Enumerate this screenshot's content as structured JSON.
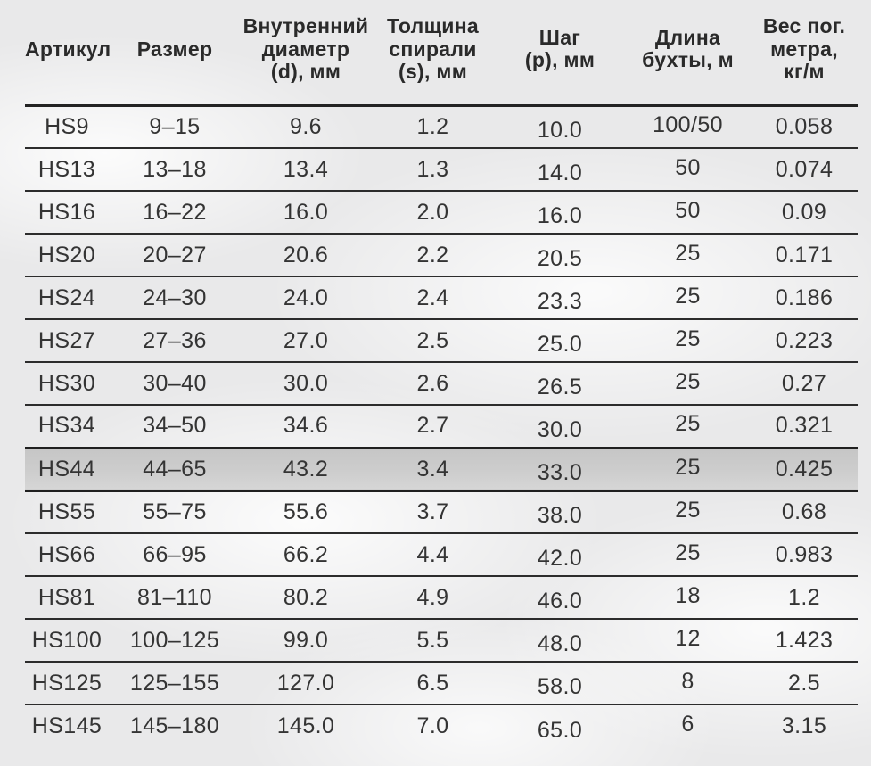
{
  "colors": {
    "page_background": "#e9e9ea",
    "text": "#343434",
    "rule_line": "#2c2c2c",
    "highlight_row_background": "#cbcbcb"
  },
  "table": {
    "columns": [
      {
        "id": "article",
        "label": "Артикул"
      },
      {
        "id": "size",
        "label": "Размер"
      },
      {
        "id": "inner_diameter",
        "label": "Внутренний\nдиаметр\n(d), мм"
      },
      {
        "id": "spiral_thickness",
        "label": "Толщина\nспирали\n(s), мм"
      },
      {
        "id": "step",
        "label": "Шаг\n(р), мм"
      },
      {
        "id": "coil_length",
        "label": "Длина\nбухты, м"
      },
      {
        "id": "weight_per_meter",
        "label": "Вес пог.\nметра,\nкг/м"
      }
    ],
    "highlighted_article": "HS44",
    "rows": [
      {
        "article": "HS9",
        "size": "9–15",
        "inner_diameter": "9.6",
        "spiral_thickness": "1.2",
        "step": "10.0",
        "coil_length": "100/50",
        "weight_per_meter": "0.058",
        "highlighted": false
      },
      {
        "article": "HS13",
        "size": "13–18",
        "inner_diameter": "13.4",
        "spiral_thickness": "1.3",
        "step": "14.0",
        "coil_length": "50",
        "weight_per_meter": "0.074",
        "highlighted": false
      },
      {
        "article": "HS16",
        "size": "16–22",
        "inner_diameter": "16.0",
        "spiral_thickness": "2.0",
        "step": "16.0",
        "coil_length": "50",
        "weight_per_meter": "0.09",
        "highlighted": false
      },
      {
        "article": "HS20",
        "size": "20–27",
        "inner_diameter": "20.6",
        "spiral_thickness": "2.2",
        "step": "20.5",
        "coil_length": "25",
        "weight_per_meter": "0.171",
        "highlighted": false
      },
      {
        "article": "HS24",
        "size": "24–30",
        "inner_diameter": "24.0",
        "spiral_thickness": "2.4",
        "step": "23.3",
        "coil_length": "25",
        "weight_per_meter": "0.186",
        "highlighted": false
      },
      {
        "article": "HS27",
        "size": "27–36",
        "inner_diameter": "27.0",
        "spiral_thickness": "2.5",
        "step": "25.0",
        "coil_length": "25",
        "weight_per_meter": "0.223",
        "highlighted": false
      },
      {
        "article": "HS30",
        "size": "30–40",
        "inner_diameter": "30.0",
        "spiral_thickness": "2.6",
        "step": "26.5",
        "coil_length": "25",
        "weight_per_meter": "0.27",
        "highlighted": false
      },
      {
        "article": "HS34",
        "size": "34–50",
        "inner_diameter": "34.6",
        "spiral_thickness": "2.7",
        "step": "30.0",
        "coil_length": "25",
        "weight_per_meter": "0.321",
        "highlighted": false
      },
      {
        "article": "HS44",
        "size": "44–65",
        "inner_diameter": "43.2",
        "spiral_thickness": "3.4",
        "step": "33.0",
        "coil_length": "25",
        "weight_per_meter": "0.425",
        "highlighted": true
      },
      {
        "article": "HS55",
        "size": "55–75",
        "inner_diameter": "55.6",
        "spiral_thickness": "3.7",
        "step": "38.0",
        "coil_length": "25",
        "weight_per_meter": "0.68",
        "highlighted": false
      },
      {
        "article": "HS66",
        "size": "66–95",
        "inner_diameter": "66.2",
        "spiral_thickness": "4.4",
        "step": "42.0",
        "coil_length": "25",
        "weight_per_meter": "0.983",
        "highlighted": false
      },
      {
        "article": "HS81",
        "size": "81–110",
        "inner_diameter": "80.2",
        "spiral_thickness": "4.9",
        "step": "46.0",
        "coil_length": "18",
        "weight_per_meter": "1.2",
        "highlighted": false
      },
      {
        "article": "HS100",
        "size": "100–125",
        "inner_diameter": "99.0",
        "spiral_thickness": "5.5",
        "step": "48.0",
        "coil_length": "12",
        "weight_per_meter": "1.423",
        "highlighted": false
      },
      {
        "article": "HS125",
        "size": "125–155",
        "inner_diameter": "127.0",
        "spiral_thickness": "6.5",
        "step": "58.0",
        "coil_length": "8",
        "weight_per_meter": "2.5",
        "highlighted": false
      },
      {
        "article": "HS145",
        "size": "145–180",
        "inner_diameter": "145.0",
        "spiral_thickness": "7.0",
        "step": "65.0",
        "coil_length": "6",
        "weight_per_meter": "3.15",
        "highlighted": false
      }
    ]
  },
  "chart_data": {
    "type": "table",
    "title": "",
    "columns": [
      "Артикул",
      "Размер",
      "Внутренний диаметр (d), мм",
      "Толщина спирали (s), мм",
      "Шаг (р), мм",
      "Длина бухты, м",
      "Вес пог. метра, кг/м"
    ],
    "rows": [
      [
        "HS9",
        "9–15",
        "9.6",
        "1.2",
        "10.0",
        "100/50",
        "0.058"
      ],
      [
        "HS13",
        "13–18",
        "13.4",
        "1.3",
        "14.0",
        "50",
        "0.074"
      ],
      [
        "HS16",
        "16–22",
        "16.0",
        "2.0",
        "16.0",
        "50",
        "0.09"
      ],
      [
        "HS20",
        "20–27",
        "20.6",
        "2.2",
        "20.5",
        "25",
        "0.171"
      ],
      [
        "HS24",
        "24–30",
        "24.0",
        "2.4",
        "23.3",
        "25",
        "0.186"
      ],
      [
        "HS27",
        "27–36",
        "27.0",
        "2.5",
        "25.0",
        "25",
        "0.223"
      ],
      [
        "HS30",
        "30–40",
        "30.0",
        "2.6",
        "26.5",
        "25",
        "0.27"
      ],
      [
        "HS34",
        "34–50",
        "34.6",
        "2.7",
        "30.0",
        "25",
        "0.321"
      ],
      [
        "HS44",
        "44–65",
        "43.2",
        "3.4",
        "33.0",
        "25",
        "0.425"
      ],
      [
        "HS55",
        "55–75",
        "55.6",
        "3.7",
        "38.0",
        "25",
        "0.68"
      ],
      [
        "HS66",
        "66–95",
        "66.2",
        "4.4",
        "42.0",
        "25",
        "0.983"
      ],
      [
        "HS81",
        "81–110",
        "80.2",
        "4.9",
        "46.0",
        "18",
        "1.2"
      ],
      [
        "HS100",
        "100–125",
        "99.0",
        "5.5",
        "48.0",
        "12",
        "1.423"
      ],
      [
        "HS125",
        "125–155",
        "127.0",
        "6.5",
        "58.0",
        "8",
        "2.5"
      ],
      [
        "HS145",
        "145–180",
        "145.0",
        "7.0",
        "65.0",
        "6",
        "3.15"
      ]
    ]
  }
}
